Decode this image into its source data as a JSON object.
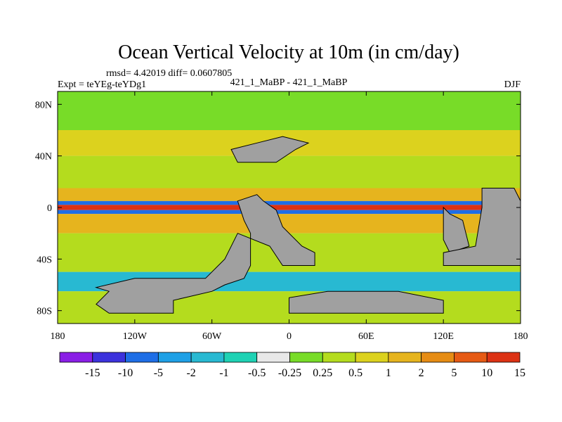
{
  "chart_data": {
    "type": "heatmap",
    "title": "Ocean Vertical Velocity at 10m (in cm/day)",
    "stats_line": "rmsd= 4.42019 diff= 0.0607805",
    "left_label": "Expt = teYEg-teYDg1",
    "center_label": "421_1_MaBP - 421_1_MaBP",
    "right_label": "DJF",
    "x_ticks": [
      "180",
      "120W",
      "60W",
      "0",
      "60E",
      "120E",
      "180"
    ],
    "x_tick_values": [
      -180,
      -120,
      -60,
      0,
      60,
      120,
      180
    ],
    "y_ticks": [
      "80N",
      "40N",
      "0",
      "40S",
      "80S"
    ],
    "y_tick_values": [
      80,
      40,
      0,
      -40,
      -80
    ],
    "xlim": [
      -180,
      180
    ],
    "ylim": [
      -90,
      90
    ],
    "colorbar_labels": [
      "-15",
      "-10",
      "-5",
      "-2",
      "-1",
      "-0.5",
      "-0.25",
      "0.25",
      "0.5",
      "1",
      "2",
      "5",
      "10",
      "15"
    ],
    "colorbar_colors": [
      "#8a1ee6",
      "#3c32dc",
      "#1e6ee6",
      "#1ea0e6",
      "#28b9d2",
      "#1ed2b4",
      "#e8e8e8",
      "#78dc28",
      "#b4dc1e",
      "#dcd21e",
      "#e6b41e",
      "#e68c14",
      "#e65a14",
      "#dc3214"
    ],
    "land_color": "#a0a0a0",
    "bands": [
      {
        "lat": [
          60,
          90
        ],
        "value": 0.1
      },
      {
        "lat": [
          40,
          60
        ],
        "value": 0.6
      },
      {
        "lat": [
          15,
          40
        ],
        "value": 0.3
      },
      {
        "lat": [
          5,
          15
        ],
        "value": 1.5
      },
      {
        "lat": [
          2,
          5
        ],
        "value": -6
      },
      {
        "lat": [
          -2,
          2
        ],
        "value": 12
      },
      {
        "lat": [
          -5,
          -2
        ],
        "value": -8
      },
      {
        "lat": [
          -20,
          -5
        ],
        "value": 1.2
      },
      {
        "lat": [
          -50,
          -20
        ],
        "value": 0.4
      },
      {
        "lat": [
          -65,
          -50
        ],
        "value": -1.5
      },
      {
        "lat": [
          -90,
          -65
        ],
        "value": 0.3
      }
    ],
    "land_polygons": [
      {
        "name": "Americas",
        "points": [
          [
            -140,
            -65
          ],
          [
            -150,
            -75
          ],
          [
            -140,
            -82
          ],
          [
            -90,
            -82
          ],
          [
            -90,
            -72
          ],
          [
            -60,
            -65
          ],
          [
            -50,
            -60
          ],
          [
            -35,
            -55
          ],
          [
            -30,
            -45
          ],
          [
            -30,
            -20
          ],
          [
            -35,
            -10
          ],
          [
            -40,
            5
          ],
          [
            -25,
            10
          ],
          [
            -20,
            5
          ],
          [
            -10,
            -2
          ],
          [
            -5,
            -15
          ],
          [
            10,
            -30
          ],
          [
            20,
            -35
          ],
          [
            20,
            -45
          ],
          [
            -5,
            -45
          ],
          [
            -15,
            -30
          ],
          [
            -40,
            -20
          ],
          [
            -50,
            -40
          ],
          [
            -65,
            -55
          ],
          [
            -90,
            -55
          ],
          [
            -120,
            -55
          ],
          [
            -150,
            -62
          ]
        ]
      },
      {
        "name": "Greenland",
        "points": [
          [
            -25,
            50
          ],
          [
            -45,
            45
          ],
          [
            -40,
            35
          ],
          [
            -10,
            35
          ],
          [
            5,
            45
          ],
          [
            15,
            50
          ],
          [
            -5,
            55
          ]
        ]
      },
      {
        "name": "SE-Asia",
        "points": [
          [
            120,
            0
          ],
          [
            125,
            -5
          ],
          [
            135,
            -10
          ],
          [
            140,
            -30
          ],
          [
            125,
            -35
          ],
          [
            120,
            -25
          ]
        ]
      },
      {
        "name": "Pacific-land",
        "points": [
          [
            150,
            15
          ],
          [
            175,
            15
          ],
          [
            180,
            5
          ],
          [
            180,
            -45
          ],
          [
            120,
            -45
          ],
          [
            120,
            -35
          ],
          [
            145,
            -30
          ],
          [
            150,
            0
          ]
        ]
      },
      {
        "name": "Antarctica",
        "points": [
          [
            30,
            -65
          ],
          [
            85,
            -65
          ],
          [
            120,
            -72
          ],
          [
            120,
            -82
          ],
          [
            60,
            -82
          ],
          [
            0,
            -82
          ],
          [
            0,
            -70
          ]
        ]
      }
    ]
  }
}
